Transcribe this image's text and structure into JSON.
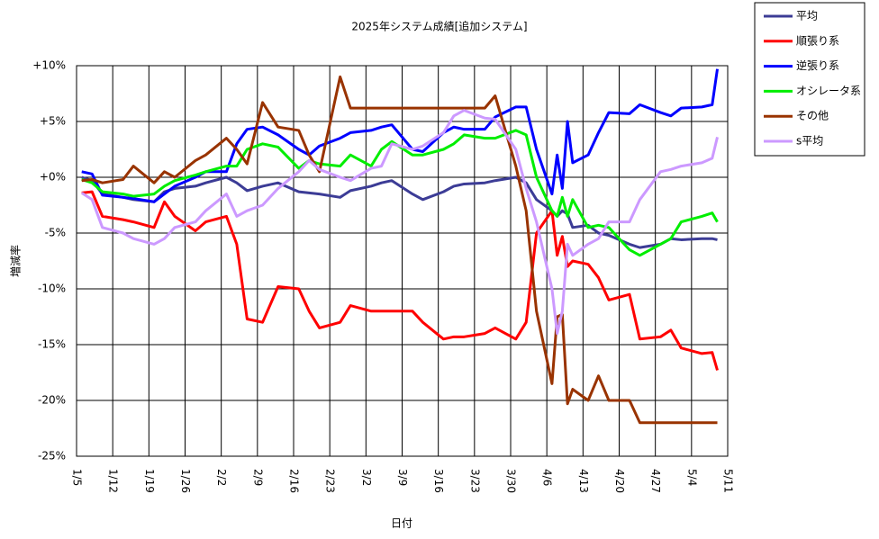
{
  "chart_data": {
    "type": "line",
    "title": "2025年システム成績[追加システム]",
    "x_label": "日付",
    "y_label": "増減率",
    "x": [
      "1/6",
      "1/8",
      "1/10",
      "1/14",
      "1/16",
      "1/20",
      "1/22",
      "1/24",
      "1/28",
      "1/30",
      "2/3",
      "2/5",
      "2/7",
      "2/10",
      "2/13",
      "2/17",
      "2/19",
      "2/21",
      "2/25",
      "2/27",
      "3/3",
      "3/5",
      "3/7",
      "3/11",
      "3/13",
      "3/17",
      "3/19",
      "3/21",
      "3/25",
      "3/27",
      "3/31",
      "4/2",
      "4/4",
      "4/7",
      "4/8",
      "4/9",
      "4/10",
      "4/11",
      "4/14",
      "4/16",
      "4/18",
      "4/22",
      "4/24",
      "4/28",
      "4/30",
      "5/2",
      "5/6",
      "5/8",
      "5/9"
    ],
    "xlim": [
      "1/5",
      "5/11"
    ],
    "xticks": [
      "1/5",
      "1/12",
      "1/19",
      "1/26",
      "2/2",
      "2/9",
      "2/16",
      "2/23",
      "3/2",
      "3/9",
      "3/16",
      "3/23",
      "3/30",
      "4/6",
      "4/13",
      "4/20",
      "4/27",
      "5/4",
      "5/11"
    ],
    "ylim": [
      -25,
      10
    ],
    "yticks": [
      {
        "value": -25,
        "label": "-25%"
      },
      {
        "value": -20,
        "label": "-20%"
      },
      {
        "value": -15,
        "label": "-15%"
      },
      {
        "value": -10,
        "label": "-10%"
      },
      {
        "value": -5,
        "label": "-5%"
      },
      {
        "value": 0,
        "label": "+0%"
      },
      {
        "value": 5,
        "label": "+5%"
      },
      {
        "value": 10,
        "label": "+10%"
      }
    ],
    "grid": true,
    "legend": "right",
    "series": [
      {
        "name": "平均",
        "color": "#3c3c96",
        "values": [
          0,
          -0.3,
          -1.5,
          -1.8,
          -2,
          -2.2,
          -1.3,
          -1,
          -0.8,
          -0.5,
          0,
          -0.5,
          -1.2,
          -0.8,
          -0.5,
          -1.3,
          -1.4,
          -1.5,
          -1.8,
          -1.2,
          -0.8,
          -0.5,
          -0.3,
          -1.5,
          -2,
          -1.3,
          -0.8,
          -0.6,
          -0.5,
          -0.3,
          0,
          -0.5,
          -2,
          -3,
          -3.5,
          -3,
          -3.3,
          -4.5,
          -4.3,
          -5,
          -5.2,
          -6,
          -6.3,
          -6,
          -5.5,
          -5.6,
          -5.5,
          -5.5,
          -5.6
        ]
      },
      {
        "name": "順張り系",
        "color": "#ff0000",
        "values": [
          -1.4,
          -1.3,
          -3.5,
          -3.8,
          -4,
          -4.5,
          -2.2,
          -3.5,
          -4.8,
          -4,
          -3.5,
          -6,
          -12.7,
          -13,
          -9.8,
          -10,
          -12,
          -13.5,
          -13,
          -11.5,
          -12,
          -12,
          -12,
          -12,
          -13,
          -14.5,
          -14.3,
          -14.3,
          -14,
          -13.5,
          -14.5,
          -13,
          -5,
          -3,
          -7,
          -5.3,
          -8,
          -7.5,
          -7.8,
          -9,
          -11,
          -10.5,
          -14.5,
          -14.3,
          -13.7,
          -15.3,
          -15.8,
          -15.7,
          -17.3
        ]
      },
      {
        "name": "逆張り系",
        "color": "#0000ff",
        "values": [
          0.5,
          0.3,
          -1.6,
          -1.8,
          -1.9,
          -2.2,
          -1.5,
          -0.8,
          0,
          0.5,
          0.5,
          3,
          4.3,
          4.5,
          3.8,
          2.5,
          2,
          2.8,
          3.5,
          4,
          4.2,
          4.5,
          4.7,
          2.5,
          2.3,
          4,
          4.5,
          4.3,
          4.3,
          5.4,
          6.3,
          6.3,
          2.5,
          -1.5,
          2,
          -1,
          5,
          1.3,
          2,
          4,
          5.8,
          5.7,
          6.5,
          5.8,
          5.5,
          6.2,
          6.3,
          6.5,
          9.7
        ]
      },
      {
        "name": "オシレータ系",
        "color": "#00ee00",
        "values": [
          -0.2,
          -0.5,
          -1.3,
          -1.5,
          -1.7,
          -1.5,
          -0.8,
          -0.3,
          0.2,
          0.5,
          1,
          1,
          2.5,
          3,
          2.7,
          0.8,
          1.5,
          1.2,
          1,
          2,
          1,
          2.5,
          3.2,
          2,
          2,
          2.5,
          3,
          3.8,
          3.5,
          3.5,
          4.2,
          3.8,
          0,
          -3,
          -3.5,
          -1.8,
          -3.5,
          -2,
          -4.5,
          -4.3,
          -4.5,
          -6.5,
          -7,
          -6,
          -5.5,
          -4,
          -3.5,
          -3.2,
          -4
        ]
      },
      {
        "name": "その他",
        "color": "#993300",
        "values": [
          -0.3,
          -0.2,
          -0.5,
          -0.2,
          1,
          -0.5,
          0.5,
          0,
          1.5,
          2,
          3.5,
          2.5,
          1.2,
          6.7,
          4.5,
          4.2,
          2,
          0.5,
          9,
          6.2,
          6.2,
          6.2,
          6.2,
          6.2,
          6.2,
          6.2,
          6.2,
          6.2,
          6.2,
          7.3,
          1,
          -3,
          -12,
          -18.5,
          -12.5,
          -12.3,
          -20.3,
          -19,
          -20,
          -17.8,
          -20,
          -20,
          -22,
          -22,
          -22,
          -22,
          -22,
          -22,
          -22
        ]
      },
      {
        "name": "s平均",
        "color": "#cc99ff",
        "values": [
          -1.4,
          -2,
          -4.5,
          -5,
          -5.5,
          -6,
          -5.5,
          -4.5,
          -4,
          -3,
          -1.5,
          -3.5,
          -3,
          -2.5,
          -1,
          0.5,
          1.5,
          0.7,
          0,
          -0.3,
          0.8,
          1,
          3,
          2.5,
          2.8,
          4,
          5.5,
          6,
          5.3,
          5.2,
          2.5,
          -1,
          -4,
          -10,
          -14,
          -12,
          -6,
          -7,
          -6,
          -5.5,
          -4,
          -4,
          -2,
          0.5,
          0.7,
          1,
          1.3,
          1.7,
          3.6
        ]
      }
    ]
  }
}
